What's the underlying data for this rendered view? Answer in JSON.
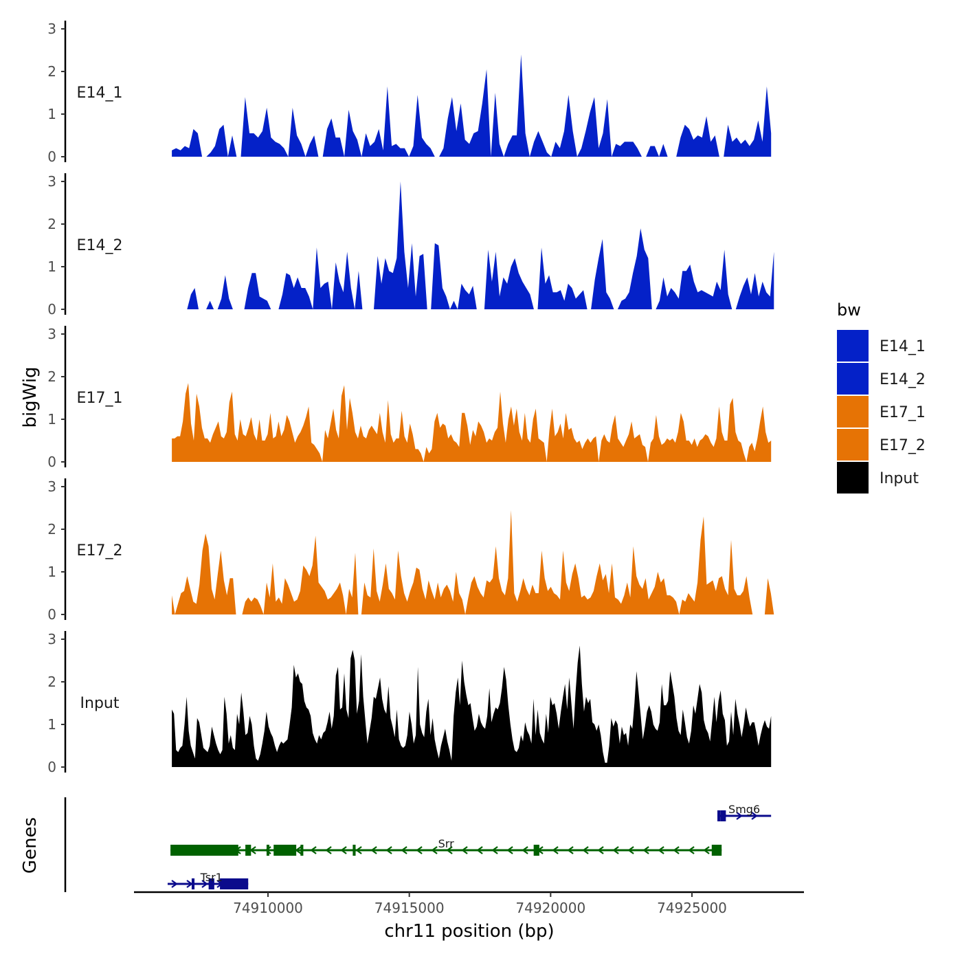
{
  "chart_data": {
    "type": "area",
    "chromosome": "chr11",
    "x_range": [
      74906600,
      74927900
    ],
    "xlabel": "chr11 position (bp)",
    "ylabel": "bigWig",
    "ylim": [
      0,
      3
    ],
    "y_ticks": [
      0,
      1,
      2,
      3
    ],
    "x_ticks": [
      74910000,
      74915000,
      74920000,
      74925000
    ],
    "legend": {
      "title": "bw",
      "position": "right",
      "entries": [
        {
          "name": "E14_1",
          "color": "#0421c8"
        },
        {
          "name": "E14_2",
          "color": "#0421c8"
        },
        {
          "name": "E17_1",
          "color": "#e67305"
        },
        {
          "name": "E17_2",
          "color": "#e67305"
        },
        {
          "name": "Input",
          "color": "#000000"
        }
      ]
    },
    "series": [
      {
        "name": "E14_1",
        "color": "#0421c8",
        "x_start": 74906600,
        "x_end": 74927800,
        "values": [
          0.15,
          0.2,
          0.15,
          0.25,
          0.2,
          0.65,
          0.55,
          0,
          0,
          0.1,
          0.25,
          0.65,
          0.75,
          0,
          0.5,
          0,
          0,
          1.4,
          0.55,
          0.55,
          0.45,
          0.6,
          1.15,
          0.45,
          0.35,
          0.3,
          0.2,
          0,
          1.15,
          0.5,
          0.3,
          0,
          0.3,
          0.5,
          0,
          0,
          0.65,
          0.9,
          0.45,
          0.45,
          0,
          1.1,
          0.6,
          0.4,
          0,
          0.55,
          0.25,
          0.35,
          0.65,
          0.15,
          1.65,
          0.25,
          0.3,
          0.2,
          0.2,
          0,
          0.25,
          1.45,
          0.45,
          0.3,
          0.2,
          0,
          0,
          0.2,
          0.9,
          1.4,
          0.6,
          1.25,
          0.4,
          0.3,
          0.55,
          0.6,
          1.25,
          2.05,
          0,
          1.5,
          0.3,
          0,
          0.3,
          0.5,
          0.5,
          2.4,
          0.55,
          0,
          0.35,
          0.6,
          0.35,
          0.1,
          0,
          0.35,
          0.2,
          0.6,
          1.45,
          0.6,
          0,
          0.2,
          0.6,
          1.05,
          1.4,
          0.2,
          0.55,
          1.35,
          0,
          0.3,
          0.25,
          0.35,
          0.35,
          0.35,
          0.2,
          0,
          0,
          0.25,
          0.25,
          0,
          0.3,
          0,
          0,
          0,
          0.45,
          0.75,
          0.65,
          0.4,
          0.5,
          0.45,
          0.95,
          0.35,
          0.5,
          0,
          0,
          0.75,
          0.35,
          0.45,
          0.3,
          0.4,
          0.25,
          0.4,
          0.85,
          0.35,
          1.65,
          0.55
        ]
      },
      {
        "name": "E14_2",
        "color": "#0421c8",
        "x_start": 74906600,
        "x_end": 74927900,
        "values": [
          0,
          0,
          0,
          0,
          0,
          0.35,
          0.5,
          0,
          0,
          0,
          0.2,
          0,
          0,
          0.25,
          0.8,
          0.25,
          0,
          0,
          0,
          0,
          0.5,
          0.85,
          0.85,
          0.3,
          0.25,
          0.2,
          0,
          0,
          0,
          0.35,
          0.85,
          0.8,
          0.5,
          0.75,
          0.5,
          0.5,
          0.3,
          0,
          1.45,
          0.5,
          0.6,
          0.65,
          0,
          1.1,
          0.65,
          0.4,
          1.35,
          0.5,
          0,
          0.9,
          0,
          0,
          0,
          0,
          1.25,
          0.6,
          1.2,
          0.9,
          0.85,
          1.2,
          3.0,
          1.35,
          0.5,
          1.55,
          0.3,
          1.25,
          1.3,
          0,
          0,
          1.55,
          1.5,
          0.5,
          0.3,
          0,
          0.2,
          0,
          0.6,
          0.45,
          0.35,
          0.55,
          0,
          0,
          0,
          1.4,
          0.65,
          1.35,
          0.3,
          0.75,
          0.6,
          1.0,
          1.2,
          0.85,
          0.65,
          0.5,
          0.35,
          0,
          0,
          1.45,
          0.6,
          0.8,
          0.4,
          0.4,
          0.45,
          0.2,
          0.6,
          0.5,
          0.25,
          0.35,
          0.45,
          0,
          0,
          0.7,
          1.2,
          1.65,
          0.4,
          0.25,
          0,
          0,
          0.2,
          0.25,
          0.4,
          0.85,
          1.25,
          1.9,
          1.4,
          1.2,
          0,
          0,
          0.2,
          0.75,
          0.3,
          0.5,
          0.4,
          0.25,
          0.9,
          0.9,
          1.05,
          0.65,
          0.4,
          0.45,
          0.4,
          0.35,
          0.3,
          0.65,
          0.45,
          1.4,
          0.35,
          0,
          0,
          0.3,
          0.55,
          0.75,
          0.35,
          0.85,
          0.3,
          0.65,
          0.4,
          0.3,
          1.35
        ]
      },
      {
        "name": "E17_1",
        "color": "#e67305",
        "x_start": 74906600,
        "x_end": 74927800,
        "values": [
          0.55,
          0.55,
          0.6,
          0.6,
          0.95,
          1.6,
          1.85,
          0.9,
          0.5,
          1.6,
          1.3,
          0.8,
          0.55,
          0.55,
          0.45,
          0.65,
          0.8,
          0.95,
          0.6,
          0.55,
          0.7,
          1.4,
          1.65,
          0.65,
          0.5,
          1.0,
          0.65,
          0.6,
          0.8,
          1.05,
          0.65,
          0.5,
          1.0,
          0.5,
          0.5,
          0.65,
          1.15,
          0.55,
          0.6,
          0.95,
          0.6,
          0.75,
          1.1,
          0.95,
          0.7,
          0.45,
          0.6,
          0.7,
          0.85,
          1.05,
          1.3,
          0.45,
          0.4,
          0.3,
          0.2,
          0,
          0.75,
          0.55,
          0.9,
          1.25,
          0.75,
          0.55,
          1.55,
          1.8,
          0.75,
          1.5,
          1.15,
          0.7,
          0.55,
          0.85,
          0.6,
          0.55,
          0.75,
          0.85,
          0.75,
          0.65,
          1.15,
          0.7,
          0.45,
          1.45,
          0.65,
          0.45,
          0.55,
          0.55,
          1.2,
          0.6,
          0.45,
          0.9,
          0.65,
          0.3,
          0.3,
          0.2,
          0,
          0.35,
          0.2,
          0.3,
          0.95,
          1.15,
          0.8,
          0.9,
          0.85,
          0.55,
          0.65,
          0.5,
          0.45,
          0.35,
          1.15,
          1.15,
          0.85,
          0.4,
          0.75,
          0.6,
          0.95,
          0.85,
          0.7,
          0.45,
          0.55,
          0.5,
          0.7,
          0.8,
          1.65,
          0.9,
          0.45,
          1.0,
          1.3,
          0.85,
          1.25,
          0.7,
          0.5,
          1.15,
          0.55,
          0.45,
          1.0,
          1.25,
          0.55,
          0.5,
          0.45,
          0,
          0.75,
          1.25,
          0.6,
          0.7,
          0.9,
          0.55,
          1.15,
          0.75,
          0.8,
          0.55,
          0.45,
          0.5,
          0.3,
          0.45,
          0.55,
          0.45,
          0.55,
          0.6,
          0,
          0.5,
          0.65,
          0.5,
          0.45,
          0.85,
          1.1,
          0.55,
          0.45,
          0.35,
          0.5,
          0.65,
          0.95,
          0.55,
          0.6,
          0.65,
          0.4,
          0.35,
          0,
          0.45,
          0.55,
          1.1,
          0.6,
          0.4,
          0.45,
          0.55,
          0.5,
          0.55,
          0.45,
          0.7,
          1.15,
          0.95,
          0.5,
          0.5,
          0.4,
          0.55,
          0.35,
          0.5,
          0.55,
          0.65,
          0.6,
          0.45,
          0.35,
          0.55,
          1.3,
          0.7,
          0.5,
          0.5,
          1.35,
          1.5,
          0.7,
          0.5,
          0.45,
          0.2,
          0,
          0.35,
          0.45,
          0.25,
          0.55,
          0.95,
          1.3,
          0.7,
          0.45,
          0.5
        ]
      },
      {
        "name": "E17_2",
        "color": "#e67305",
        "x_start": 74906600,
        "x_end": 74927900,
        "values": [
          0.45,
          0,
          0.25,
          0.5,
          0.55,
          0.9,
          0.6,
          0.3,
          0.25,
          0.7,
          1.5,
          1.9,
          1.6,
          0.6,
          0.35,
          0.95,
          1.5,
          0.8,
          0.45,
          0.85,
          0.85,
          0,
          0,
          0,
          0.3,
          0.4,
          0.3,
          0.4,
          0.35,
          0.2,
          0,
          0.75,
          0.4,
          1.2,
          0.3,
          0.4,
          0.25,
          0.85,
          0.7,
          0.5,
          0.3,
          0.35,
          0.55,
          1.15,
          1.05,
          0.9,
          1.15,
          1.85,
          0.75,
          0.65,
          0.55,
          0.35,
          0.4,
          0.5,
          0.6,
          0.75,
          0.45,
          0,
          0.6,
          0.4,
          1.45,
          0,
          0,
          0.75,
          0.45,
          0.4,
          1.55,
          0.55,
          0.3,
          0.7,
          1.2,
          0.6,
          0.5,
          0.35,
          1.5,
          0.9,
          0.5,
          0.3,
          0.55,
          0.75,
          1.1,
          1.05,
          0.6,
          0.35,
          0.8,
          0.55,
          0.35,
          0.75,
          0.4,
          0.6,
          0.7,
          0.55,
          0.3,
          1.0,
          0.5,
          0.35,
          0,
          0.4,
          0.75,
          0.9,
          0.65,
          0.5,
          0.4,
          0.8,
          0.75,
          0.85,
          1.6,
          0.85,
          0.55,
          0.45,
          0.85,
          2.45,
          0.5,
          0.3,
          0.55,
          0.85,
          0.6,
          0.45,
          0.7,
          0.5,
          0.5,
          1.5,
          0.85,
          0.55,
          0.65,
          0.5,
          0.45,
          0.35,
          1.5,
          0.75,
          0.55,
          0.95,
          1.2,
          0.85,
          0.4,
          0.45,
          0.35,
          0.4,
          0.55,
          0.9,
          1.2,
          0.8,
          0.95,
          0.5,
          1.2,
          0.4,
          0.35,
          0.25,
          0.45,
          0.75,
          0.4,
          1.6,
          0.9,
          0.7,
          0.6,
          0.85,
          0.35,
          0.5,
          0.65,
          1.0,
          0.75,
          0.85,
          0.45,
          0.45,
          0.4,
          0.3,
          0,
          0.35,
          0.3,
          0.5,
          0.4,
          0.3,
          0.75,
          1.75,
          2.3,
          0.7,
          0.75,
          0.8,
          0.55,
          0.85,
          0.9,
          0.6,
          0.45,
          1.75,
          0.6,
          0.45,
          0.45,
          0.55,
          0.9,
          0.4,
          0,
          0,
          0,
          0,
          0,
          0.85,
          0.5,
          0
        ]
      },
      {
        "name": "Input",
        "color": "#000000",
        "x_start": 74906600,
        "x_end": 74927800,
        "values": [
          1.35,
          1.25,
          0.4,
          0.35,
          0.45,
          0.5,
          1.0,
          1.65,
          0.85,
          0.5,
          0.35,
          0.2,
          1.15,
          1.05,
          0.75,
          0.45,
          0.4,
          0.35,
          0.5,
          0.95,
          0.75,
          0.55,
          0.4,
          0.3,
          0.4,
          1.65,
          1.25,
          0.55,
          0.75,
          0.45,
          0.4,
          1.25,
          1.0,
          1.75,
          1.3,
          0.75,
          0.8,
          1.2,
          1.0,
          0.5,
          0.2,
          0.15,
          0.3,
          0.55,
          0.85,
          1.3,
          0.95,
          0.8,
          0.7,
          0.5,
          0.35,
          0.5,
          0.6,
          0.55,
          0.6,
          0.65,
          1.0,
          1.4,
          2.4,
          2.1,
          2.2,
          2.0,
          1.95,
          1.55,
          1.4,
          1.35,
          1.2,
          0.8,
          0.65,
          0.55,
          0.75,
          0.65,
          0.8,
          0.85,
          1.05,
          1.3,
          0.9,
          1.2,
          2.15,
          2.35,
          1.35,
          1.4,
          2.2,
          1.35,
          1.15,
          2.55,
          2.75,
          2.5,
          1.25,
          1.55,
          2.65,
          1.65,
          1.1,
          0.55,
          0.85,
          1.15,
          1.65,
          1.6,
          1.85,
          2.1,
          1.6,
          1.35,
          1.25,
          1.9,
          1.15,
          0.95,
          0.7,
          1.35,
          0.65,
          0.5,
          0.45,
          0.5,
          0.75,
          1.3,
          1.0,
          0.55,
          0.75,
          2.35,
          1.0,
          0.8,
          0.7,
          1.3,
          1.6,
          0.75,
          1.15,
          0.65,
          0.4,
          0.2,
          0.5,
          0.7,
          0.9,
          0.6,
          0.4,
          0.15,
          1.2,
          1.75,
          2.1,
          1.45,
          2.5,
          2.0,
          1.7,
          1.45,
          1.5,
          1.15,
          0.85,
          0.95,
          1.25,
          1.05,
          0.95,
          0.9,
          1.2,
          1.85,
          1.05,
          1.25,
          1.4,
          1.35,
          1.5,
          1.85,
          2.35,
          2.05,
          1.45,
          1.0,
          0.65,
          0.4,
          0.35,
          0.45,
          0.75,
          0.6,
          1.05,
          0.85,
          0.75,
          0.55,
          1.6,
          0.75,
          1.35,
          0.8,
          0.65,
          0.55,
          1.25,
          0.8,
          1.65,
          1.45,
          1.5,
          1.25,
          0.9,
          1.3,
          1.65,
          1.95,
          1.35,
          2.1,
          1.5,
          0.9,
          1.75,
          2.45,
          2.85,
          1.95,
          1.3,
          1.65,
          1.5,
          1.6,
          1.05,
          1.0,
          0.85,
          1.0,
          0.75,
          0.35,
          0.1,
          0.1,
          0.5,
          1.15,
          0.95,
          1.1,
          1.0,
          0.55,
          0.95,
          0.75,
          0.8,
          0.5,
          1.0,
          0.9,
          1.5,
          2.25,
          1.75,
          1.2,
          0.65,
          0.95,
          1.3,
          1.45,
          1.3,
          1.0,
          0.9,
          0.85,
          1.05,
          1.95,
          1.45,
          1.45,
          1.55,
          2.25,
          1.95,
          1.65,
          1.15,
          0.85,
          0.75,
          1.35,
          1.05,
          0.7,
          0.55,
          0.85,
          1.45,
          1.25,
          1.6,
          1.95,
          1.75,
          1.1,
          0.9,
          0.8,
          0.6,
          1.1,
          1.65,
          1.05,
          1.55,
          1.8,
          1.25,
          1.1,
          0.5,
          0.6,
          1.3,
          0.75,
          1.6,
          1.25,
          1.0,
          0.7,
          1.0,
          1.4,
          1.15,
          0.95,
          1.05,
          1.05,
          0.8,
          0.5,
          0.75,
          0.95,
          1.1,
          0.95,
          0.9,
          1.2
        ]
      }
    ],
    "genes": [
      {
        "name": "Smg6",
        "strand": "+",
        "color": "#0b0b8c",
        "start": 74925900,
        "end": 74927800,
        "row": 0,
        "exons": [
          [
            74925900,
            74925950
          ],
          [
            74926000,
            74926200
          ]
        ]
      },
      {
        "name": "Srr",
        "strand": "-",
        "color": "#006100",
        "start": 74906550,
        "end": 74926050,
        "row": 1,
        "exons": [
          [
            74906550,
            74908950
          ],
          [
            74909200,
            74909400
          ],
          [
            74909950,
            74910000
          ],
          [
            74910200,
            74911000
          ],
          [
            74911150,
            74911250
          ],
          [
            74913000,
            74913100
          ],
          [
            74919400,
            74919600
          ],
          [
            74925700,
            74926050
          ]
        ]
      },
      {
        "name": "Tsr1",
        "strand": "+",
        "color": "#0b0b8c",
        "start": 74906450,
        "end": 74909300,
        "row": 2,
        "exons": [
          [
            74907300,
            74907400
          ],
          [
            74907900,
            74908100
          ],
          [
            74908300,
            74909300
          ]
        ]
      }
    ],
    "genes_label": "Genes"
  }
}
